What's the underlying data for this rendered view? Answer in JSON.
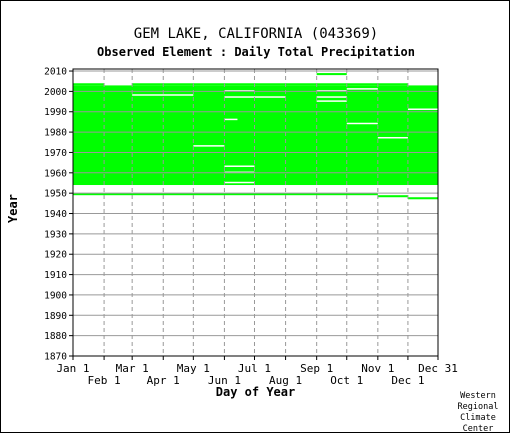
{
  "header": {
    "title": "GEM LAKE, CALIFORNIA   (043369)",
    "subtitle": "Observed Element : Daily Total Precipitation"
  },
  "footer": {
    "credit": "Western\nRegional\nClimate\nCenter"
  },
  "colors": {
    "data": "#00ff00",
    "grid": "#999999",
    "axis": "#000000"
  },
  "chart_data": {
    "type": "heatmap",
    "title": "GEM LAKE, CALIFORNIA   (043369)",
    "subtitle": "Observed Element : Daily Total Precipitation",
    "xlabel": "Day of Year",
    "ylabel": "Year",
    "xlim": [
      1,
      365
    ],
    "ylim": [
      1870,
      2011
    ],
    "yticks": [
      1870,
      1880,
      1890,
      1900,
      1910,
      1920,
      1930,
      1940,
      1950,
      1960,
      1970,
      1980,
      1990,
      2000,
      2010
    ],
    "xticks_upper": [
      {
        "label": "Jan 1",
        "day": 1
      },
      {
        "label": "Mar 1",
        "day": 60
      },
      {
        "label": "May 1",
        "day": 121
      },
      {
        "label": "Jul 1",
        "day": 182
      },
      {
        "label": "Sep 1",
        "day": 244
      },
      {
        "label": "Nov 1",
        "day": 305
      },
      {
        "label": "Dec 31",
        "day": 365
      }
    ],
    "xticks_lower": [
      {
        "label": "Feb 1",
        "day": 32
      },
      {
        "label": "Apr 1",
        "day": 91
      },
      {
        "label": "Jun 1",
        "day": 152
      },
      {
        "label": "Aug 1",
        "day": 213
      },
      {
        "label": "Oct 1",
        "day": 274
      },
      {
        "label": "Dec 1",
        "day": 335
      }
    ],
    "grid": true,
    "data_available": [
      {
        "from_day": 1,
        "to_day": 365,
        "from_year": 1954,
        "to_year": 2003
      },
      {
        "from_day": 1,
        "to_day": 32,
        "from_year": 2003,
        "to_year": 2004
      },
      {
        "from_day": 60,
        "to_day": 335,
        "from_year": 2003,
        "to_year": 2004
      },
      {
        "from_day": 244,
        "to_day": 274,
        "from_year": 2008,
        "to_year": 2009
      },
      {
        "from_day": 1,
        "to_day": 305,
        "from_year": 1949,
        "to_year": 1950
      },
      {
        "from_day": 305,
        "to_day": 335,
        "from_year": 1948,
        "to_year": 1949
      },
      {
        "from_day": 335,
        "to_day": 365,
        "from_year": 1947,
        "to_year": 1948
      }
    ],
    "data_gaps": [
      {
        "from_day": 32,
        "to_day": 60,
        "from_year": 2003,
        "to_year": 2004
      },
      {
        "from_day": 335,
        "to_day": 365,
        "from_year": 2003,
        "to_year": 2004
      },
      {
        "from_day": 60,
        "to_day": 121,
        "from_year": 1998,
        "to_year": 1998.6
      },
      {
        "from_day": 152,
        "to_day": 182,
        "from_year": 2000,
        "to_year": 2000.6
      },
      {
        "from_day": 152,
        "to_day": 182,
        "from_year": 1997,
        "to_year": 1997.6
      },
      {
        "from_day": 182,
        "to_day": 213,
        "from_year": 1997,
        "to_year": 1997.6
      },
      {
        "from_day": 244,
        "to_day": 274,
        "from_year": 2000,
        "to_year": 2000.6
      },
      {
        "from_day": 244,
        "to_day": 274,
        "from_year": 1997,
        "to_year": 1997.6
      },
      {
        "from_day": 244,
        "to_day": 274,
        "from_year": 1995,
        "to_year": 1995.6
      },
      {
        "from_day": 274,
        "to_day": 305,
        "from_year": 2001,
        "to_year": 2001.6
      },
      {
        "from_day": 335,
        "to_day": 365,
        "from_year": 1991,
        "to_year": 1991.6
      },
      {
        "from_day": 152,
        "to_day": 165,
        "from_year": 1986,
        "to_year": 1986.6
      },
      {
        "from_day": 274,
        "to_day": 305,
        "from_year": 1984,
        "to_year": 1984.6
      },
      {
        "from_day": 305,
        "to_day": 335,
        "from_year": 1977,
        "to_year": 1977.6
      },
      {
        "from_day": 121,
        "to_day": 152,
        "from_year": 1973,
        "to_year": 1973.6
      },
      {
        "from_day": 152,
        "to_day": 182,
        "from_year": 1963,
        "to_year": 1963.6
      },
      {
        "from_day": 152,
        "to_day": 182,
        "from_year": 1960,
        "to_year": 1960.6
      },
      {
        "from_day": 152,
        "to_day": 182,
        "from_year": 1955,
        "to_year": 1955.6
      }
    ]
  }
}
